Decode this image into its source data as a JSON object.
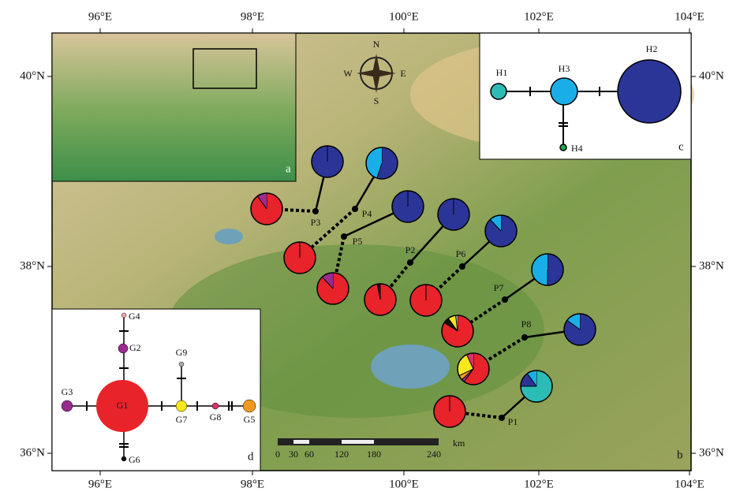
{
  "axes": {
    "top": [
      "96°E",
      "98°E",
      "100°E",
      "102°E",
      "104°E"
    ],
    "bottom": [
      "96°E",
      "98°E",
      "100°E",
      "102°E",
      "104°E"
    ],
    "left": [
      "40°N",
      "38°N",
      "36°N"
    ],
    "right": [
      "40°N",
      "38°N",
      "36°N"
    ]
  },
  "panel_labels": {
    "a": "a",
    "b": "b",
    "c": "c",
    "d": "d"
  },
  "compass": {
    "north": "N",
    "south": "S",
    "east": "E",
    "west": "W"
  },
  "scale_bar": {
    "ticks": [
      "0",
      "30",
      "60",
      "120",
      "180",
      "240"
    ],
    "unit": "km"
  },
  "network_c": [
    {
      "label": "H1",
      "color": "#2cbcb6"
    },
    {
      "label": "H2",
      "color": "#2b3597"
    },
    {
      "label": "H3",
      "color": "#1aaee8"
    },
    {
      "label": "H4",
      "color": "#22a84a"
    }
  ],
  "network_d": [
    {
      "label": "G1",
      "color": "#e8232a"
    },
    {
      "label": "G2",
      "color": "#9b2a8f"
    },
    {
      "label": "G3",
      "color": "#9b2a8f"
    },
    {
      "label": "G4",
      "color": "#f4a6a6"
    },
    {
      "label": "G5",
      "color": "#f39a1e"
    },
    {
      "label": "G6",
      "color": "#111111"
    },
    {
      "label": "G7",
      "color": "#f8e71c"
    },
    {
      "label": "G8",
      "color": "#d6336c"
    },
    {
      "label": "G9",
      "color": "#aaaaaa"
    }
  ],
  "populations": [
    {
      "label": "P1",
      "H": [
        75,
        15,
        10,
        0
      ],
      "G": [
        100,
        0,
        0,
        0,
        0,
        0,
        0,
        0,
        0
      ]
    },
    {
      "label": "P2",
      "H": [
        0,
        100,
        0,
        0
      ],
      "G": [
        97,
        0,
        0,
        0,
        0,
        3,
        0,
        0,
        0
      ]
    },
    {
      "label": "P3",
      "H": [
        0,
        100,
        0,
        0
      ],
      "G": [
        90,
        10,
        0,
        0,
        0,
        0,
        0,
        0,
        0
      ]
    },
    {
      "label": "P4",
      "H": [
        0,
        55,
        45,
        0
      ],
      "G": [
        100,
        0,
        0,
        0,
        0,
        0,
        0,
        0,
        0
      ]
    },
    {
      "label": "P5",
      "H": [
        0,
        100,
        0,
        0
      ],
      "G": [
        88,
        0,
        12,
        0,
        0,
        0,
        0,
        0,
        0
      ]
    },
    {
      "label": "P6",
      "H": [
        0,
        88,
        12,
        0
      ],
      "G": [
        100,
        0,
        0,
        0,
        0,
        0,
        0,
        0,
        0
      ]
    },
    {
      "label": "P7",
      "H": [
        0,
        50,
        50,
        0
      ],
      "G": [
        84,
        0,
        0,
        0,
        0,
        6,
        8,
        0,
        2
      ]
    },
    {
      "label": "P8",
      "H": [
        0,
        85,
        15,
        0
      ],
      "G": [
        60,
        3,
        0,
        0,
        5,
        0,
        25,
        7,
        0
      ]
    }
  ]
}
